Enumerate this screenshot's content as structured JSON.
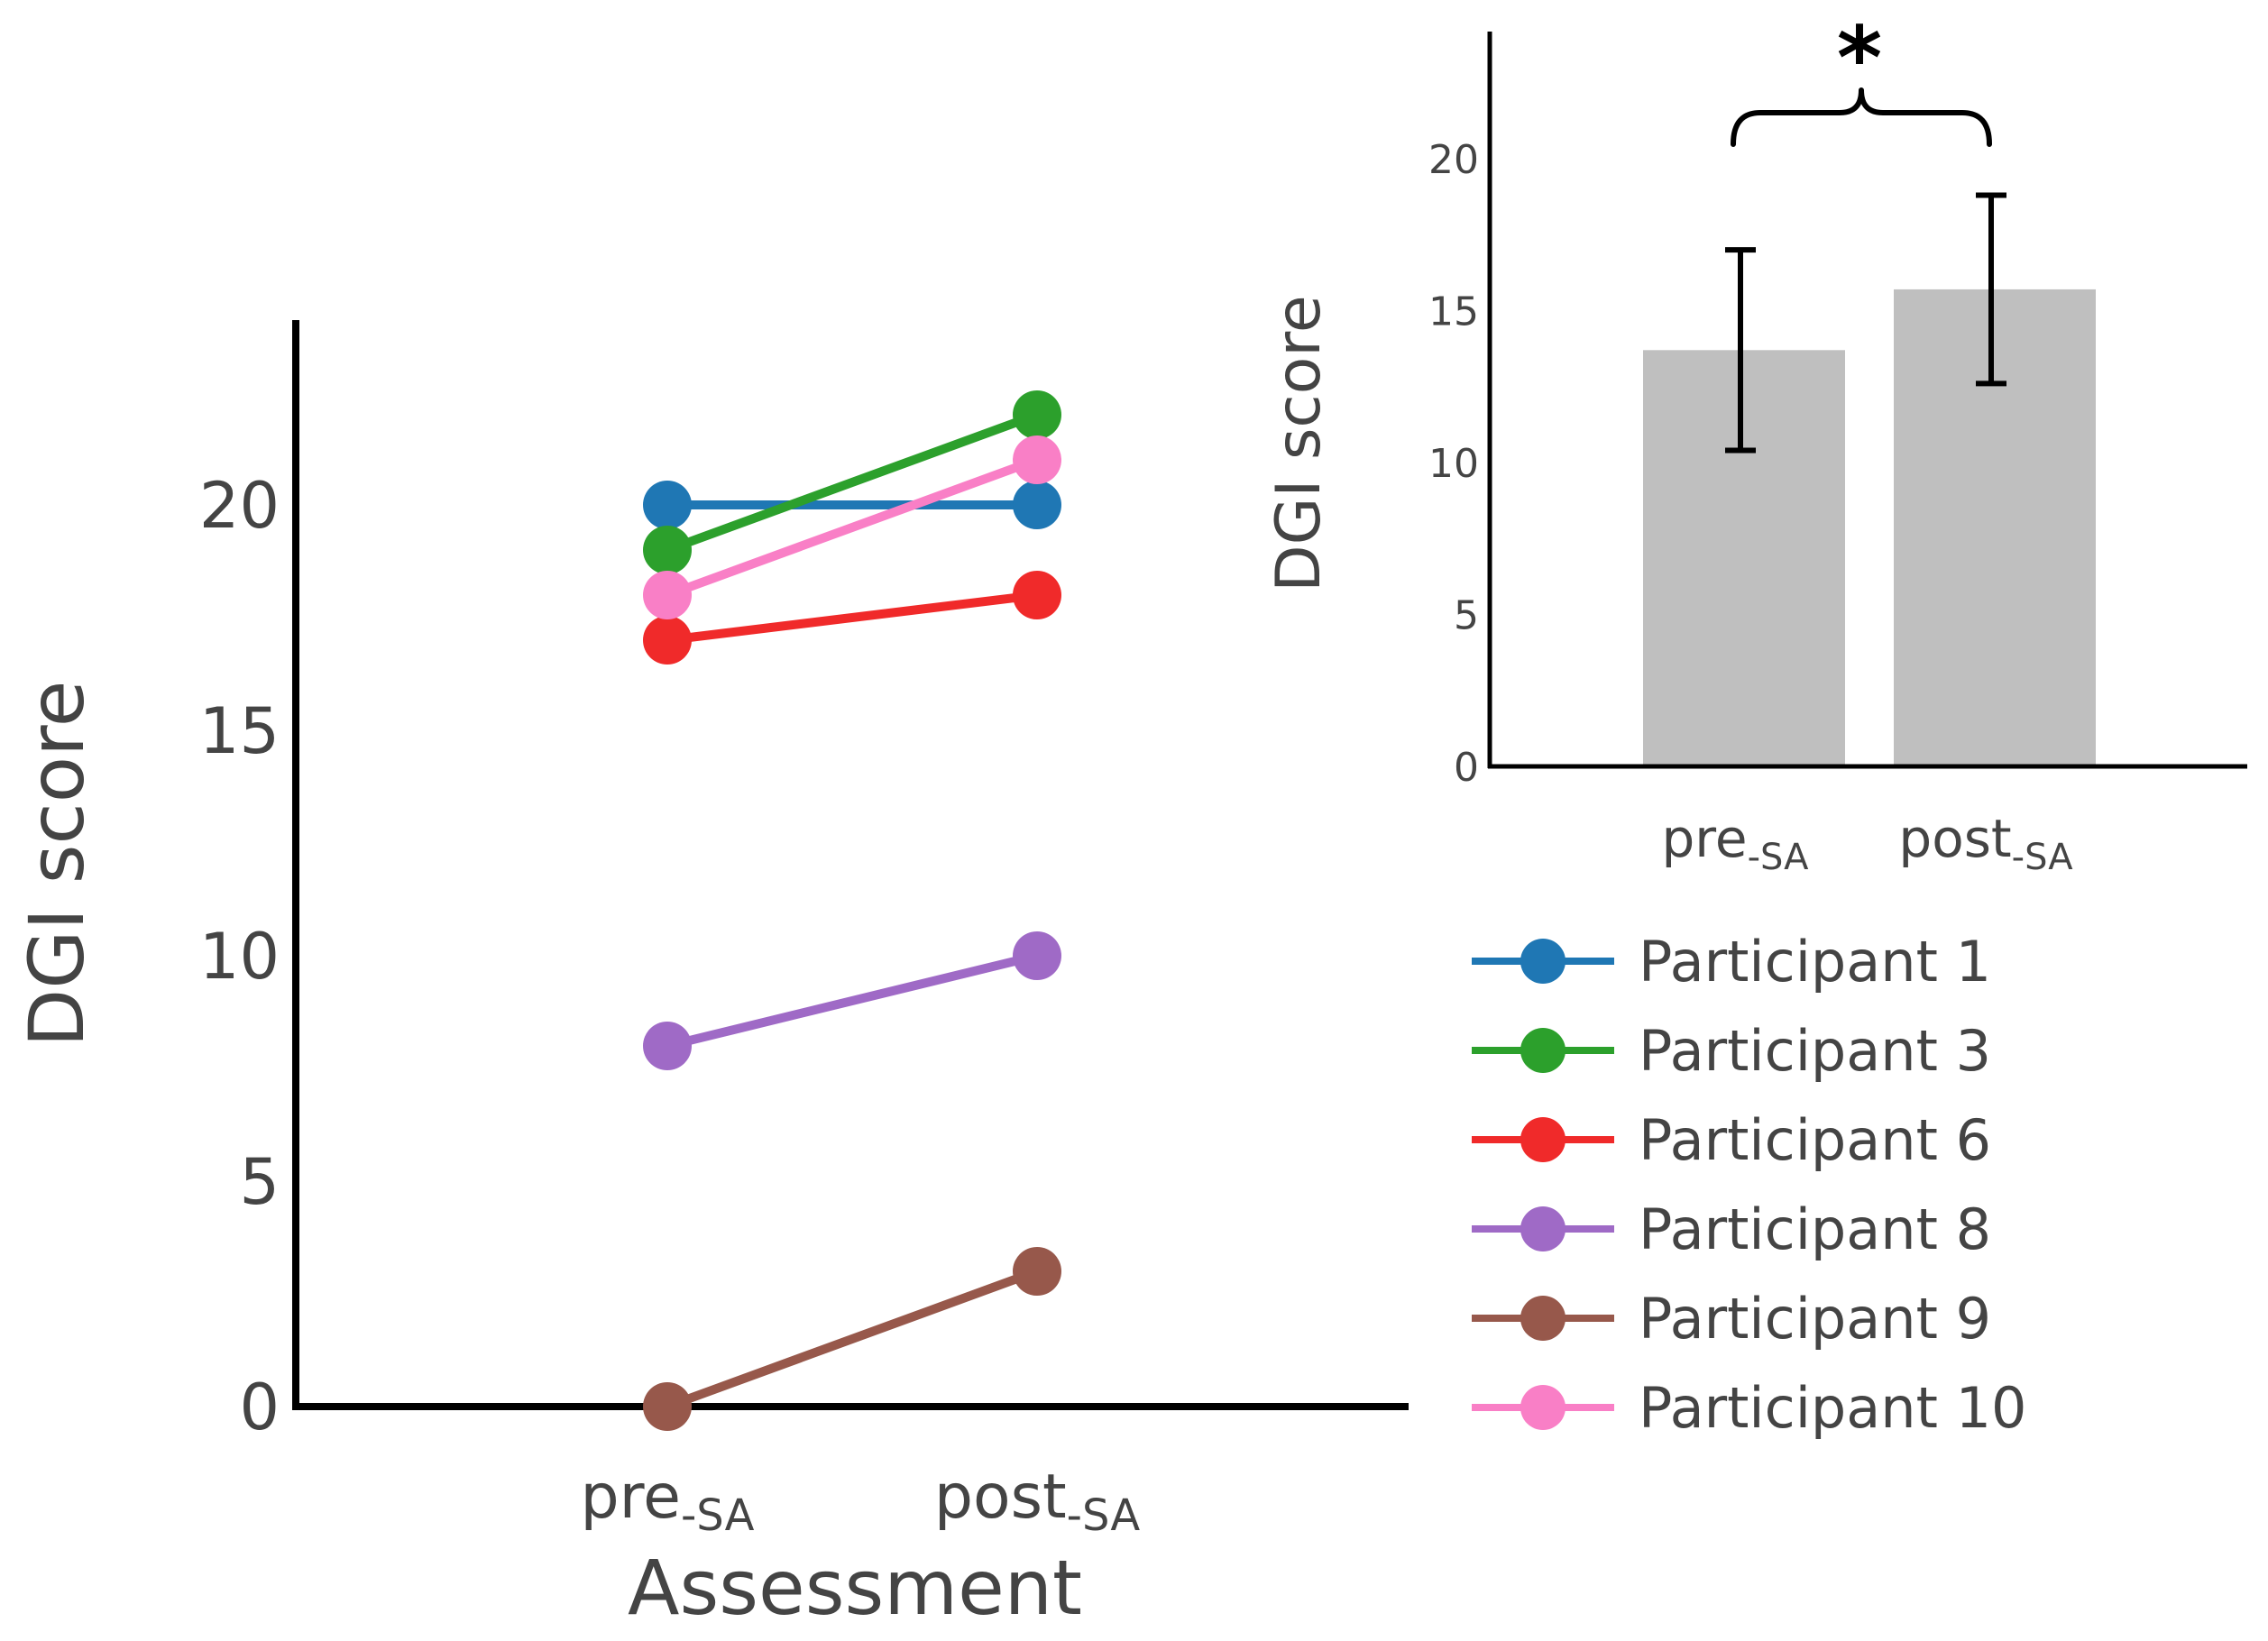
{
  "chart_data": [
    {
      "type": "line",
      "title": "",
      "xlabel": "Assessment",
      "ylabel": "DGI score",
      "categories": [
        {
          "main": "pre",
          "sub": "-SA"
        },
        {
          "main": "post",
          "sub": "-SA"
        }
      ],
      "ylim": [
        0,
        24
      ],
      "yticks": [
        0,
        5,
        10,
        15,
        20
      ],
      "grid": false,
      "legend_position": "right",
      "series": [
        {
          "name": "Participant 1",
          "color": "#1f77b4",
          "values": [
            20,
            20
          ]
        },
        {
          "name": "Participant 3",
          "color": "#2ca02c",
          "values": [
            19,
            22
          ]
        },
        {
          "name": "Participant 6",
          "color": "#f02a2a",
          "values": [
            17,
            18
          ]
        },
        {
          "name": "Participant 8",
          "color": "#9f6ac6",
          "values": [
            8,
            10
          ]
        },
        {
          "name": "Participant 9",
          "color": "#97584b",
          "values": [
            0,
            3
          ]
        },
        {
          "name": "Participant 10",
          "color": "#f97fc6",
          "values": [
            18,
            21
          ]
        }
      ]
    },
    {
      "type": "bar",
      "title": "",
      "xlabel": "",
      "ylabel": "DGI score",
      "categories": [
        {
          "main": "pre",
          "sub": "-SA"
        },
        {
          "main": "post",
          "sub": "-SA"
        }
      ],
      "values": [
        13.7,
        15.7
      ],
      "error": [
        3.3,
        3.1
      ],
      "bar_color": "#bfbfbf",
      "ylim": [
        0,
        24
      ],
      "yticks": [
        0,
        5,
        10,
        15,
        20
      ],
      "grid": false,
      "significance": {
        "label": "*",
        "between": [
          0,
          1
        ]
      }
    }
  ]
}
